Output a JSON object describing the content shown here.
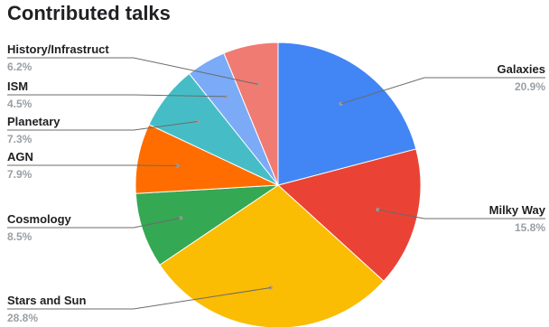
{
  "chart_data": {
    "type": "pie",
    "title": "Contributed talks",
    "legend_position": "labeled-callouts",
    "slices": [
      {
        "label": "Galaxies",
        "value": 20.9,
        "value_label": "20.9%",
        "color": "#4285f4"
      },
      {
        "label": "Milky Way",
        "value": 15.8,
        "value_label": "15.8%",
        "color": "#ea4335"
      },
      {
        "label": "Stars and Sun",
        "value": 28.8,
        "value_label": "28.8%",
        "color": "#fbbc04"
      },
      {
        "label": "Cosmology",
        "value": 8.5,
        "value_label": "8.5%",
        "color": "#34a853"
      },
      {
        "label": "AGN",
        "value": 7.9,
        "value_label": "7.9%",
        "color": "#ff6d01"
      },
      {
        "label": "Planetary",
        "value": 7.3,
        "value_label": "7.3%",
        "color": "#46bdc6"
      },
      {
        "label": "ISM",
        "value": 4.5,
        "value_label": "4.5%",
        "color": "#7baaf7"
      },
      {
        "label": "History/Infrastruct",
        "value": 6.2,
        "value_label": "6.2%",
        "color": "#f07b72"
      }
    ]
  }
}
